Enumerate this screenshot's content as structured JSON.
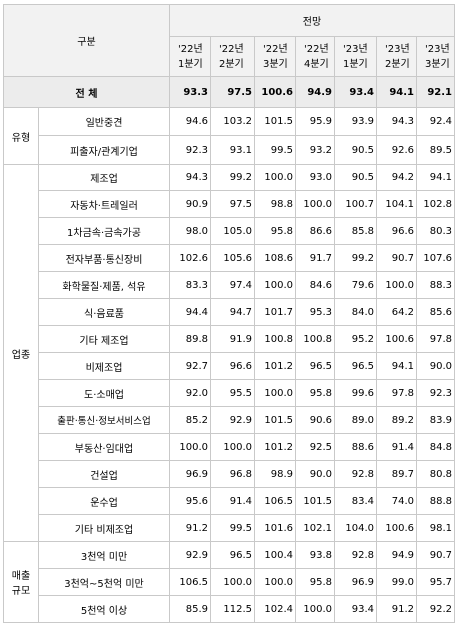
{
  "header": {
    "category_label": "구분",
    "outlook_label": "전망",
    "periods": [
      {
        "year": "'22년",
        "q": "1분기"
      },
      {
        "year": "'22년",
        "q": "2분기"
      },
      {
        "year": "'22년",
        "q": "3분기"
      },
      {
        "year": "'22년",
        "q": "4분기"
      },
      {
        "year": "'23년",
        "q": "1분기"
      },
      {
        "year": "'23년",
        "q": "2분기"
      },
      {
        "year": "'23년",
        "q": "3분기"
      }
    ]
  },
  "rows": [
    {
      "group": "",
      "label": "전 체",
      "values": [
        "93.3",
        "97.5",
        "100.6",
        "94.9",
        "93.4",
        "94.1",
        "92.1"
      ]
    },
    {
      "group": "유형",
      "label": "일반중견",
      "values": [
        "94.6",
        "103.2",
        "101.5",
        "95.9",
        "93.9",
        "94.3",
        "92.4"
      ]
    },
    {
      "group": "",
      "label": "피출자/관계기업",
      "values": [
        "92.3",
        "93.1",
        "99.5",
        "93.2",
        "90.5",
        "92.6",
        "89.5"
      ]
    },
    {
      "group": "업종",
      "label": "제조업",
      "values": [
        "94.3",
        "99.2",
        "100.0",
        "93.0",
        "90.5",
        "94.2",
        "94.1"
      ]
    },
    {
      "group": "",
      "label": "자동차·트레일러",
      "values": [
        "90.9",
        "97.5",
        "98.8",
        "100.0",
        "100.7",
        "104.1",
        "102.8"
      ]
    },
    {
      "group": "",
      "label": "1차금속·금속가공",
      "values": [
        "98.0",
        "105.0",
        "95.8",
        "86.6",
        "85.8",
        "96.6",
        "80.3"
      ]
    },
    {
      "group": "",
      "label": "전자부품·통신장비",
      "values": [
        "102.6",
        "105.6",
        "108.6",
        "91.7",
        "99.2",
        "90.7",
        "107.6"
      ]
    },
    {
      "group": "",
      "label": "화학물질·제품, 석유",
      "values": [
        "83.3",
        "97.4",
        "100.0",
        "84.6",
        "79.6",
        "100.0",
        "88.3"
      ]
    },
    {
      "group": "",
      "label": "식·음료품",
      "values": [
        "94.4",
        "94.7",
        "101.7",
        "95.3",
        "84.0",
        "64.2",
        "85.6"
      ]
    },
    {
      "group": "",
      "label": "기타 제조업",
      "values": [
        "89.8",
        "91.9",
        "100.8",
        "100.8",
        "95.2",
        "100.6",
        "97.8"
      ]
    },
    {
      "group": "",
      "label": "비제조업",
      "values": [
        "92.7",
        "96.6",
        "101.2",
        "96.5",
        "96.5",
        "94.1",
        "90.0"
      ]
    },
    {
      "group": "",
      "label": "도·소매업",
      "values": [
        "92.0",
        "95.5",
        "100.0",
        "95.8",
        "99.6",
        "97.8",
        "92.3"
      ]
    },
    {
      "group": "",
      "label": "출판·통신·정보서비스업",
      "values": [
        "85.2",
        "92.9",
        "101.5",
        "90.6",
        "89.0",
        "89.2",
        "83.9"
      ]
    },
    {
      "group": "",
      "label": "부동산·임대업",
      "values": [
        "100.0",
        "100.0",
        "101.2",
        "92.5",
        "88.6",
        "91.4",
        "84.8"
      ]
    },
    {
      "group": "",
      "label": "건설업",
      "values": [
        "96.9",
        "96.8",
        "98.9",
        "90.0",
        "92.8",
        "89.7",
        "80.8"
      ]
    },
    {
      "group": "",
      "label": "운수업",
      "values": [
        "95.6",
        "91.4",
        "106.5",
        "101.5",
        "83.4",
        "74.0",
        "88.8"
      ]
    },
    {
      "group": "",
      "label": "기타 비제조업",
      "values": [
        "91.2",
        "99.5",
        "101.6",
        "102.1",
        "104.0",
        "100.6",
        "98.1"
      ]
    },
    {
      "group": "매출\n규모",
      "label": "3천억 미만",
      "values": [
        "92.9",
        "96.5",
        "100.4",
        "93.8",
        "92.8",
        "94.9",
        "90.7"
      ]
    },
    {
      "group": "",
      "label": "3천억~5천억 미만",
      "values": [
        "106.5",
        "100.0",
        "100.0",
        "95.8",
        "96.9",
        "99.0",
        "95.7"
      ]
    },
    {
      "group": "",
      "label": "5천억 이상",
      "values": [
        "85.9",
        "112.5",
        "102.4",
        "100.0",
        "93.4",
        "91.2",
        "92.2"
      ]
    }
  ]
}
